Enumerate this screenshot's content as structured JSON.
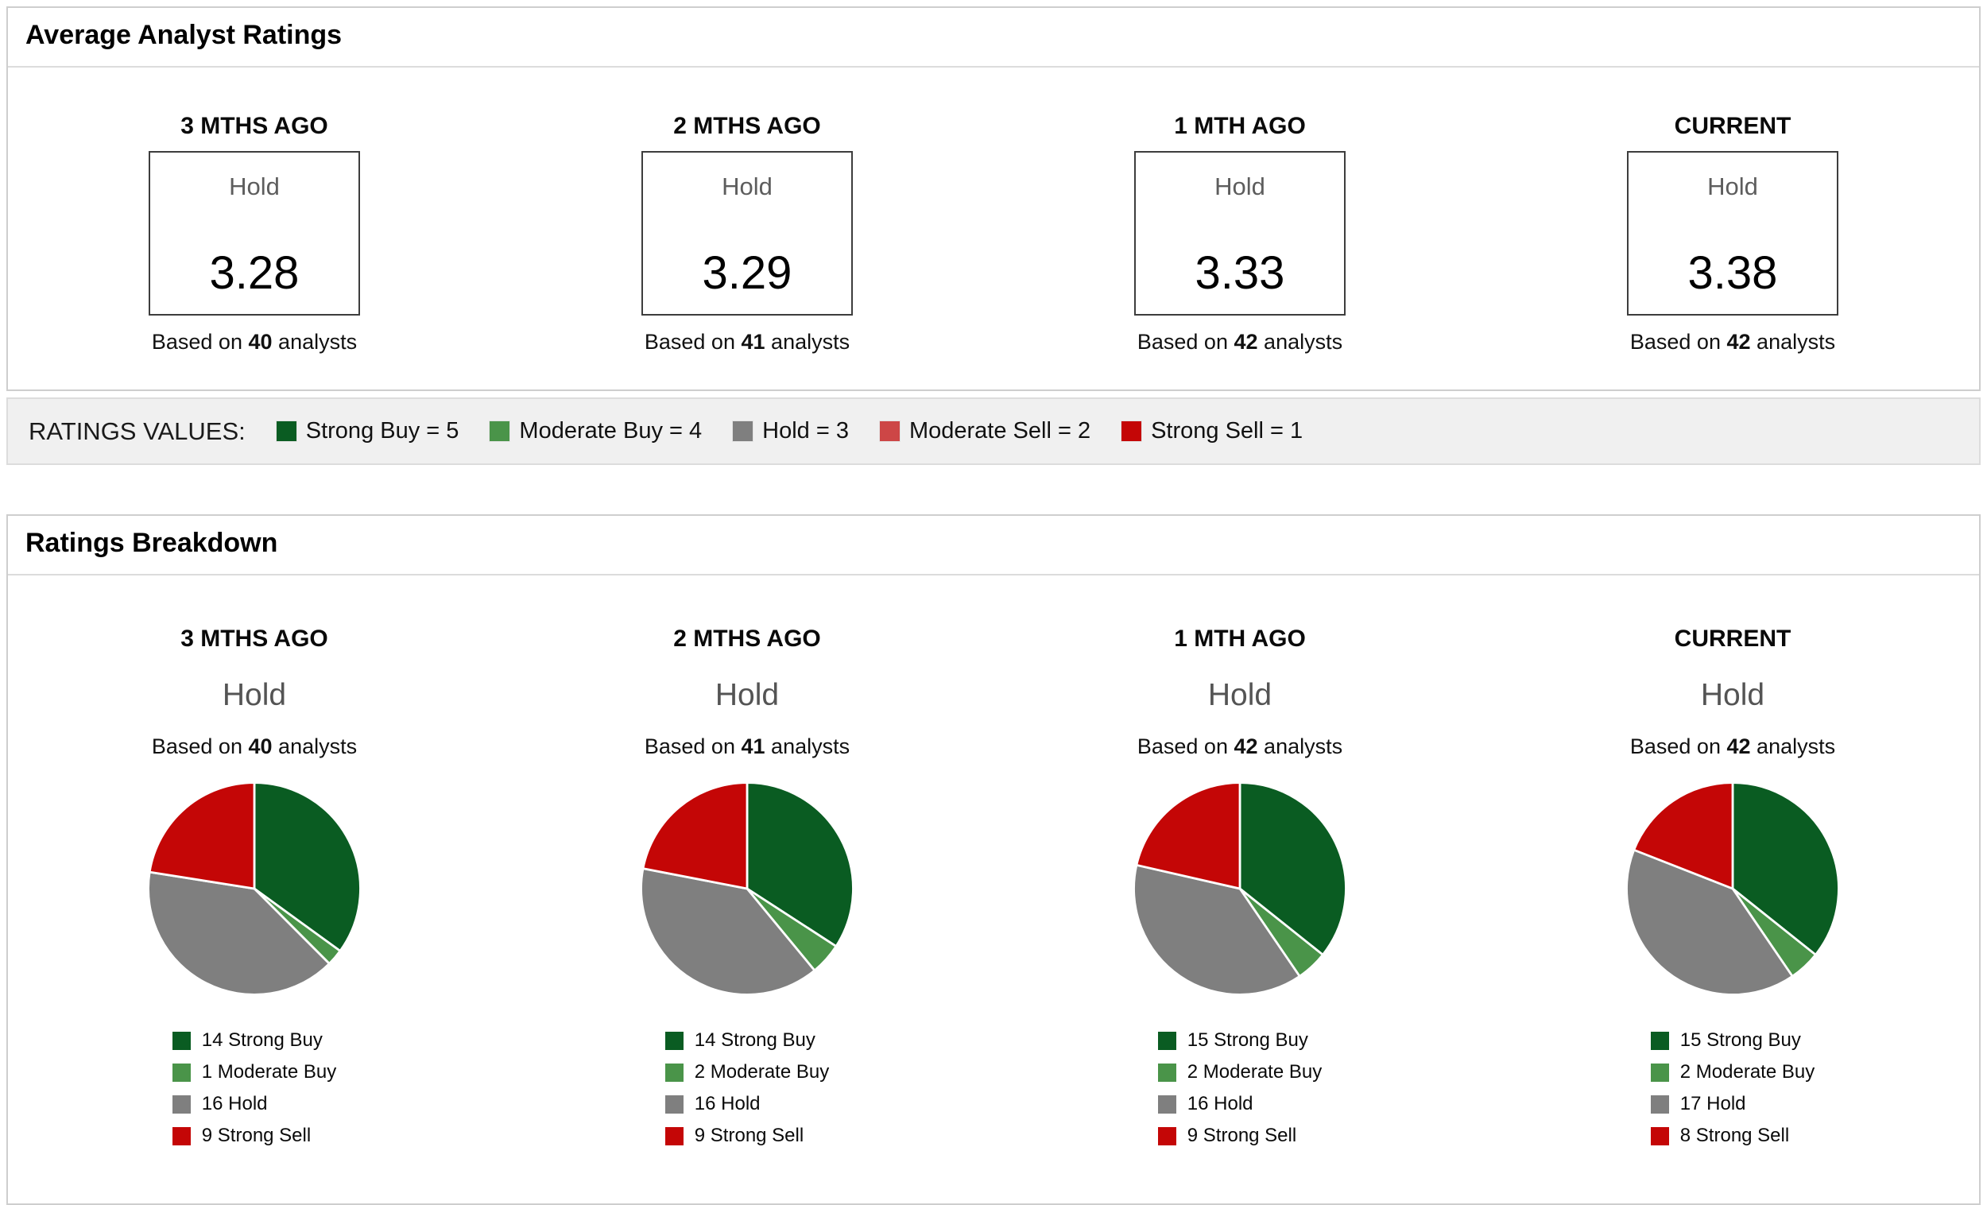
{
  "colors": {
    "strong_buy": "#0a5c22",
    "moderate_buy": "#4a9449",
    "hold": "#7f7f7f",
    "moderate_sell": "#cd4646",
    "strong_sell": "#c40606"
  },
  "average_panel": {
    "title": "Average Analyst Ratings",
    "columns": [
      {
        "period": "3 MTHS AGO",
        "rating_label": "Hold",
        "score": "3.28",
        "based_on_prefix": "Based on",
        "analyst_count": "40",
        "based_on_suffix": "analysts"
      },
      {
        "period": "2 MTHS AGO",
        "rating_label": "Hold",
        "score": "3.29",
        "based_on_prefix": "Based on",
        "analyst_count": "41",
        "based_on_suffix": "analysts"
      },
      {
        "period": "1 MTH AGO",
        "rating_label": "Hold",
        "score": "3.33",
        "based_on_prefix": "Based on",
        "analyst_count": "42",
        "based_on_suffix": "analysts"
      },
      {
        "period": "CURRENT",
        "rating_label": "Hold",
        "score": "3.38",
        "based_on_prefix": "Based on",
        "analyst_count": "42",
        "based_on_suffix": "analysts"
      }
    ]
  },
  "ratings_values": {
    "label": "RATINGS VALUES:",
    "items": [
      {
        "text": "Strong Buy = 5",
        "color_key": "strong_buy"
      },
      {
        "text": "Moderate Buy = 4",
        "color_key": "moderate_buy"
      },
      {
        "text": "Hold = 3",
        "color_key": "hold"
      },
      {
        "text": "Moderate Sell = 2",
        "color_key": "moderate_sell"
      },
      {
        "text": "Strong Sell = 1",
        "color_key": "strong_sell"
      }
    ]
  },
  "breakdown_panel": {
    "title": "Ratings Breakdown",
    "columns": [
      {
        "period": "3 MTHS AGO",
        "rating_label": "Hold",
        "based_on_prefix": "Based on",
        "analyst_count": "40",
        "based_on_suffix": "analysts",
        "legend": [
          {
            "text": "14 Strong Buy",
            "color_key": "strong_buy"
          },
          {
            "text": "1 Moderate Buy",
            "color_key": "moderate_buy"
          },
          {
            "text": "16 Hold",
            "color_key": "hold"
          },
          {
            "text": "9 Strong Sell",
            "color_key": "strong_sell"
          }
        ]
      },
      {
        "period": "2 MTHS AGO",
        "rating_label": "Hold",
        "based_on_prefix": "Based on",
        "analyst_count": "41",
        "based_on_suffix": "analysts",
        "legend": [
          {
            "text": "14 Strong Buy",
            "color_key": "strong_buy"
          },
          {
            "text": "2 Moderate Buy",
            "color_key": "moderate_buy"
          },
          {
            "text": "16 Hold",
            "color_key": "hold"
          },
          {
            "text": "9 Strong Sell",
            "color_key": "strong_sell"
          }
        ]
      },
      {
        "period": "1 MTH AGO",
        "rating_label": "Hold",
        "based_on_prefix": "Based on",
        "analyst_count": "42",
        "based_on_suffix": "analysts",
        "legend": [
          {
            "text": "15 Strong Buy",
            "color_key": "strong_buy"
          },
          {
            "text": "2 Moderate Buy",
            "color_key": "moderate_buy"
          },
          {
            "text": "16 Hold",
            "color_key": "hold"
          },
          {
            "text": "9 Strong Sell",
            "color_key": "strong_sell"
          }
        ]
      },
      {
        "period": "CURRENT",
        "rating_label": "Hold",
        "based_on_prefix": "Based on",
        "analyst_count": "42",
        "based_on_suffix": "analysts",
        "legend": [
          {
            "text": "15 Strong Buy",
            "color_key": "strong_buy"
          },
          {
            "text": "2 Moderate Buy",
            "color_key": "moderate_buy"
          },
          {
            "text": "17 Hold",
            "color_key": "hold"
          },
          {
            "text": "8 Strong Sell",
            "color_key": "strong_sell"
          }
        ]
      }
    ]
  },
  "chart_data": [
    {
      "type": "table",
      "title": "Average Analyst Ratings",
      "categories": [
        "3 MTHS AGO",
        "2 MTHS AGO",
        "1 MTH AGO",
        "CURRENT"
      ],
      "values": [
        3.28,
        3.29,
        3.33,
        3.38
      ],
      "rating_labels": [
        "Hold",
        "Hold",
        "Hold",
        "Hold"
      ],
      "analyst_counts": [
        40,
        41,
        42,
        42
      ],
      "scale": {
        "Strong Buy": 5,
        "Moderate Buy": 4,
        "Hold": 3,
        "Moderate Sell": 2,
        "Strong Sell": 1
      }
    },
    {
      "type": "pie",
      "title": "3 MTHS AGO",
      "subtitle": "Hold",
      "total": 40,
      "labels": [
        "Strong Buy",
        "Moderate Buy",
        "Hold",
        "Strong Sell"
      ],
      "values": [
        14,
        1,
        16,
        9
      ],
      "color_keys": [
        "strong_buy",
        "moderate_buy",
        "hold",
        "strong_sell"
      ],
      "start_angle_deg": -90,
      "direction": "clockwise",
      "legend_position": "bottom"
    },
    {
      "type": "pie",
      "title": "2 MTHS AGO",
      "subtitle": "Hold",
      "total": 41,
      "labels": [
        "Strong Buy",
        "Moderate Buy",
        "Hold",
        "Strong Sell"
      ],
      "values": [
        14,
        2,
        16,
        9
      ],
      "color_keys": [
        "strong_buy",
        "moderate_buy",
        "hold",
        "strong_sell"
      ],
      "start_angle_deg": -90,
      "direction": "clockwise",
      "legend_position": "bottom"
    },
    {
      "type": "pie",
      "title": "1 MTH AGO",
      "subtitle": "Hold",
      "total": 42,
      "labels": [
        "Strong Buy",
        "Moderate Buy",
        "Hold",
        "Strong Sell"
      ],
      "values": [
        15,
        2,
        16,
        9
      ],
      "color_keys": [
        "strong_buy",
        "moderate_buy",
        "hold",
        "strong_sell"
      ],
      "start_angle_deg": -90,
      "direction": "clockwise",
      "legend_position": "bottom"
    },
    {
      "type": "pie",
      "title": "CURRENT",
      "subtitle": "Hold",
      "total": 42,
      "labels": [
        "Strong Buy",
        "Moderate Buy",
        "Hold",
        "Strong Sell"
      ],
      "values": [
        15,
        2,
        17,
        8
      ],
      "color_keys": [
        "strong_buy",
        "moderate_buy",
        "hold",
        "strong_sell"
      ],
      "start_angle_deg": -90,
      "direction": "clockwise",
      "legend_position": "bottom"
    }
  ]
}
